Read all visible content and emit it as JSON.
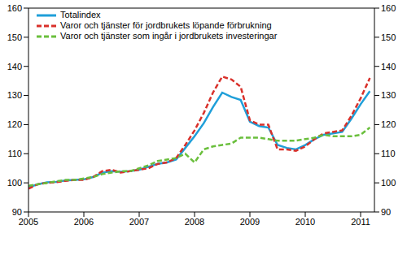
{
  "chart_data": {
    "type": "line",
    "x": [
      2005.0,
      2005.167,
      2005.333,
      2005.5,
      2005.667,
      2005.833,
      2006.0,
      2006.167,
      2006.333,
      2006.5,
      2006.667,
      2006.833,
      2007.0,
      2007.167,
      2007.333,
      2007.5,
      2007.667,
      2007.833,
      2008.0,
      2008.167,
      2008.333,
      2008.5,
      2008.667,
      2008.833,
      2009.0,
      2009.167,
      2009.333,
      2009.5,
      2009.667,
      2009.833,
      2010.0,
      2010.167,
      2010.333,
      2010.5,
      2010.667,
      2010.833,
      2011.0,
      2011.167
    ],
    "series": [
      {
        "name": "Totalindex",
        "color": "#1f9fd9",
        "line_style": "solid",
        "values": [
          98.5,
          99.5,
          100.2,
          100.3,
          100.8,
          101.0,
          101.2,
          102.0,
          103.5,
          104.0,
          103.8,
          104.0,
          104.5,
          105.5,
          106.5,
          107.0,
          108.0,
          112.0,
          116.0,
          120.5,
          126.0,
          131.0,
          129.5,
          128.5,
          121.0,
          119.5,
          119.0,
          113.0,
          112.0,
          111.5,
          113.0,
          115.0,
          116.5,
          117.0,
          117.5,
          122.0,
          127.0,
          131.5
        ]
      },
      {
        "name": "Varor och tjänster för jordbrukets löpande förbrukning",
        "color": "#d9312b",
        "line_style": "dashed",
        "values": [
          98,
          99.5,
          100,
          100.2,
          100.7,
          101,
          101,
          102,
          104,
          104.5,
          103.5,
          104,
          104.5,
          105,
          106.5,
          107,
          108.5,
          113,
          118,
          124,
          131,
          136.5,
          135.5,
          133,
          121.5,
          120,
          120,
          111.5,
          111.5,
          111,
          112.5,
          115,
          117,
          117.5,
          118,
          123,
          129,
          136
        ]
      },
      {
        "name": "Varor och tjänster som ingår i jordbrukets investeringar",
        "color": "#6abf3c",
        "line_style": "dashed",
        "values": [
          99,
          99.5,
          100,
          100.5,
          101,
          101,
          101.5,
          102,
          103,
          103.5,
          104,
          104,
          105,
          106,
          107.5,
          108,
          108.5,
          110,
          107,
          111.5,
          112.5,
          113,
          113.5,
          115.5,
          115.5,
          115.5,
          115,
          114.5,
          114.5,
          114.5,
          115,
          115.5,
          116.5,
          116,
          116,
          116,
          116.5,
          119
        ]
      }
    ],
    "xlim": [
      2005,
      2011.25
    ],
    "xticks": [
      2005,
      2006,
      2007,
      2008,
      2009,
      2010,
      2011
    ],
    "ylim": [
      90,
      160
    ],
    "yticks": [
      90,
      100,
      110,
      120,
      130,
      140,
      150,
      160
    ],
    "legend": "upper left",
    "grid": false
  }
}
